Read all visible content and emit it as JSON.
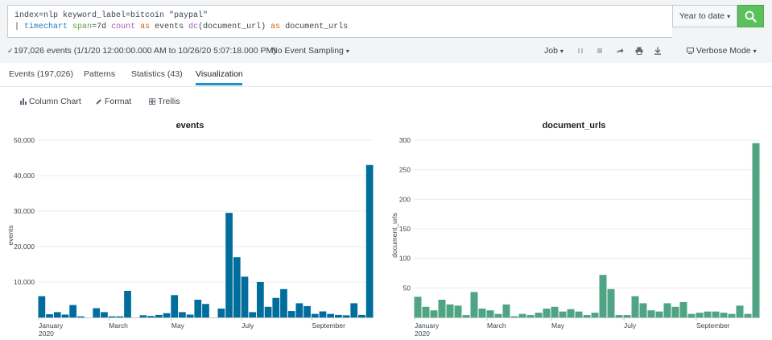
{
  "search": {
    "line1": "index=nlp keyword_label=bitcoin \"paypal\"",
    "line2_tokens": [
      {
        "t": "| ",
        "c": ""
      },
      {
        "t": "timechart",
        "c": "kw-cmd"
      },
      {
        "t": " ",
        "c": ""
      },
      {
        "t": "span",
        "c": "kw-arg"
      },
      {
        "t": "=7d ",
        "c": ""
      },
      {
        "t": "count",
        "c": "kw-fn"
      },
      {
        "t": " ",
        "c": ""
      },
      {
        "t": "as",
        "c": "kw-as"
      },
      {
        "t": " events ",
        "c": ""
      },
      {
        "t": "dc",
        "c": "kw-fn"
      },
      {
        "t": "(document_url) ",
        "c": ""
      },
      {
        "t": "as",
        "c": "kw-as"
      },
      {
        "t": " document_urls",
        "c": ""
      }
    ],
    "time_range": "Year to date",
    "time_range_caret": "▾"
  },
  "status": {
    "check": "✓",
    "summary": "197,026 events (1/1/20 12:00:00.000 AM to 10/26/20 5:07:18.000 PM)",
    "sampling": "No Event Sampling",
    "job": "Job",
    "mode": "Verbose Mode"
  },
  "tabs": [
    {
      "label": "Events (197,026)"
    },
    {
      "label": "Patterns"
    },
    {
      "label": "Statistics (43)"
    },
    {
      "label": "Visualization"
    }
  ],
  "viz_toolbar": {
    "column_chart": "Column Chart",
    "format": "Format",
    "trellis": "Trellis"
  },
  "colors": {
    "events_bar": "#006d9c",
    "urls_bar": "#4fa484",
    "accent_tab": "#1e93c6",
    "search_btn": "#5cc05c"
  },
  "chart_data": [
    {
      "type": "bar",
      "title": "events",
      "ylabel": "events",
      "ylim": [
        0,
        50000
      ],
      "yticks": [
        "10,000",
        "20,000",
        "30,000",
        "40,000",
        "50,000"
      ],
      "ytick_values": [
        10000,
        20000,
        30000,
        40000,
        50000
      ],
      "xtick_labels": [
        {
          "index": 0,
          "label": "January",
          "sub": "2020"
        },
        {
          "index": 9,
          "label": "March",
          "sub": ""
        },
        {
          "index": 17,
          "label": "May",
          "sub": ""
        },
        {
          "index": 26,
          "label": "July",
          "sub": ""
        },
        {
          "index": 35,
          "label": "September",
          "sub": ""
        }
      ],
      "values": [
        6000,
        900,
        1500,
        800,
        3500,
        300,
        0,
        2600,
        1500,
        300,
        300,
        7500,
        0,
        600,
        400,
        700,
        1200,
        6300,
        1500,
        800,
        5000,
        3800,
        0,
        2500,
        29500,
        17000,
        11500,
        1500,
        10000,
        3000,
        5500,
        8000,
        1800,
        4000,
        3200,
        1000,
        1700,
        1000,
        700,
        600,
        4000,
        700,
        43000
      ]
    },
    {
      "type": "bar",
      "title": "document_urls",
      "ylabel": "document_urls",
      "ylim": [
        0,
        300
      ],
      "yticks": [
        "50",
        "100",
        "150",
        "200",
        "250",
        "300"
      ],
      "ytick_values": [
        50,
        100,
        150,
        200,
        250,
        300
      ],
      "xtick_labels": [
        {
          "index": 0,
          "label": "January",
          "sub": "2020"
        },
        {
          "index": 9,
          "label": "March",
          "sub": ""
        },
        {
          "index": 17,
          "label": "May",
          "sub": ""
        },
        {
          "index": 26,
          "label": "July",
          "sub": ""
        },
        {
          "index": 35,
          "label": "September",
          "sub": ""
        }
      ],
      "values": [
        35,
        18,
        12,
        30,
        22,
        20,
        4,
        43,
        15,
        12,
        6,
        22,
        2,
        6,
        4,
        8,
        15,
        18,
        10,
        14,
        10,
        4,
        8,
        72,
        48,
        4,
        4,
        36,
        24,
        12,
        10,
        24,
        18,
        26,
        6,
        8,
        10,
        10,
        8,
        6,
        20,
        6,
        295
      ]
    }
  ]
}
